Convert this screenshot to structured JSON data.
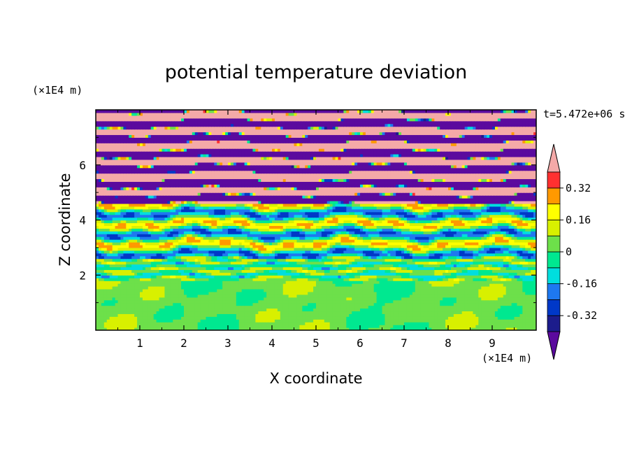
{
  "chart_data": {
    "type": "heatmap",
    "title": "potential temperature deviation",
    "xlabel": "X coordinate",
    "ylabel": "Z coordinate",
    "x_unit": "(×1E4 m)",
    "y_unit": "(×1E4 m)",
    "time_label": "t=5.472e+06 s",
    "xlim": [
      0,
      10
    ],
    "ylim": [
      0,
      8
    ],
    "x_ticks": [
      "1",
      "2",
      "3",
      "4",
      "5",
      "6",
      "7",
      "8",
      "9"
    ],
    "y_ticks": [
      "2",
      "4",
      "6"
    ],
    "colorbar": {
      "labels": [
        "0.32",
        "0.16",
        "0",
        "-0.16",
        "-0.32"
      ],
      "levels": [
        -0.4,
        -0.32,
        -0.24,
        -0.16,
        -0.08,
        0,
        0.08,
        0.16,
        0.24,
        0.32,
        0.4
      ],
      "colors": [
        "#5b0a9e",
        "#1c1c8c",
        "#0038c8",
        "#1e78f0",
        "#00dede",
        "#00e890",
        "#6de04a",
        "#d8f000",
        "#ffff00",
        "#ff9900",
        "#ff3030",
        "#f4a9a8"
      ],
      "extend": "both"
    }
  }
}
